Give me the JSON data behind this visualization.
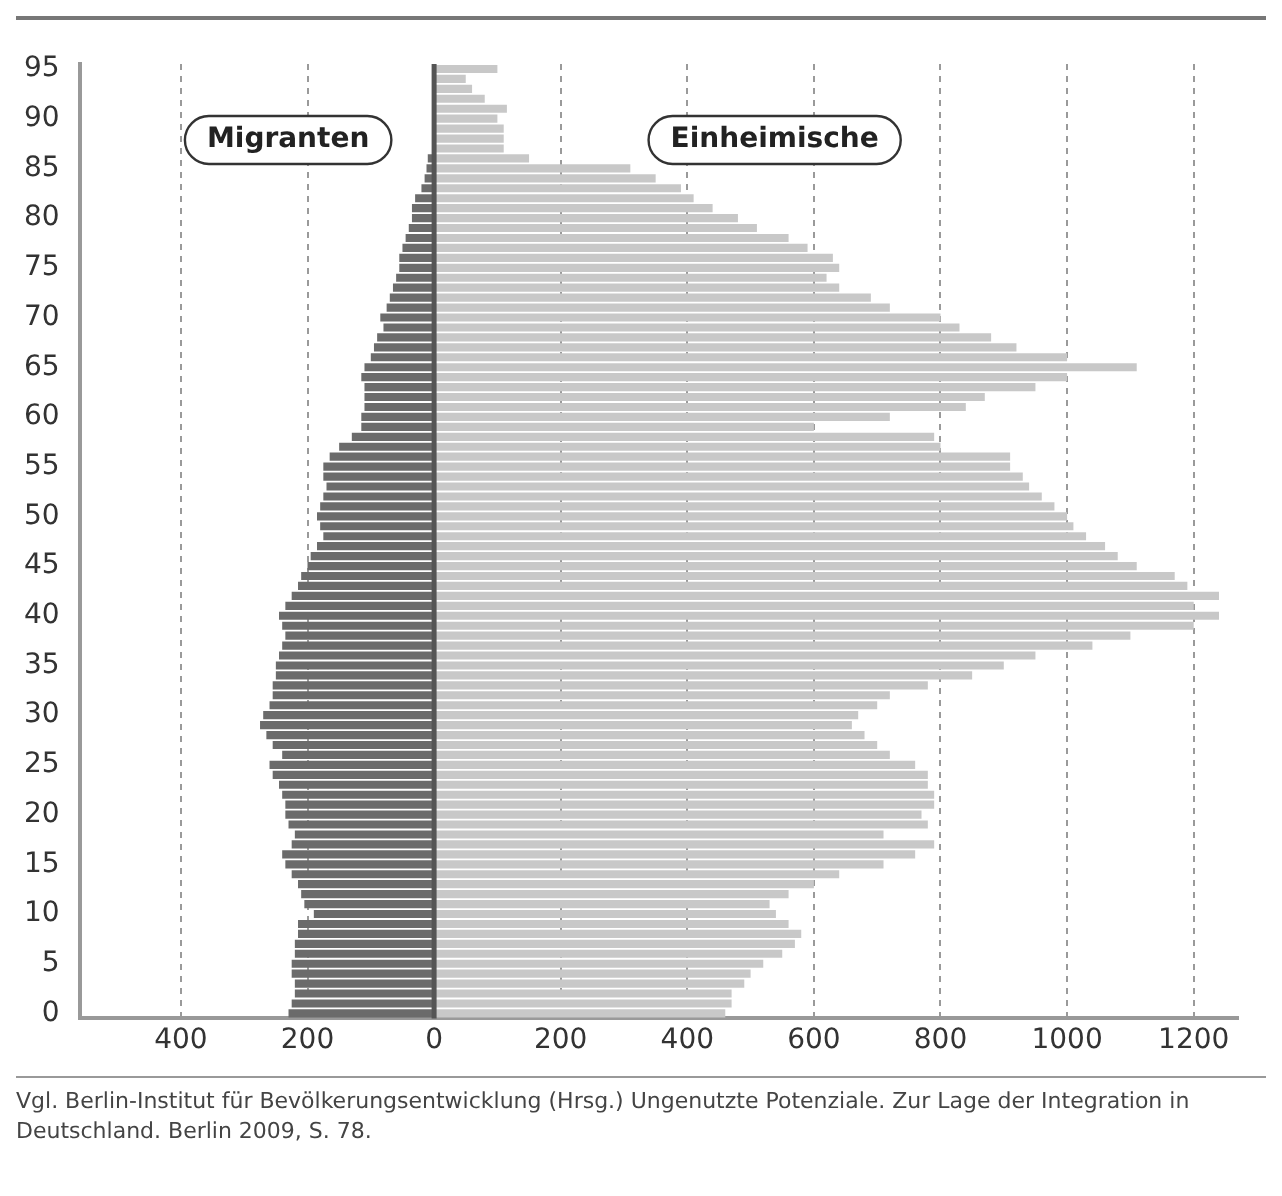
{
  "chart_data": {
    "type": "bar",
    "orientation": "horizontal",
    "stacked": true,
    "categories": [
      "95",
      null,
      null,
      null,
      null,
      "90",
      null,
      null,
      null,
      null,
      "85",
      null,
      null,
      null,
      null,
      "80",
      null,
      null,
      null,
      null,
      "75",
      null,
      null,
      null,
      null,
      "70",
      null,
      null,
      null,
      null,
      "65",
      null,
      null,
      null,
      null,
      "60",
      null,
      null,
      null,
      null,
      "55",
      null,
      null,
      null,
      null,
      "50",
      null,
      null,
      null,
      null,
      "45",
      null,
      null,
      null,
      null,
      "40",
      null,
      null,
      null,
      null,
      "35",
      null,
      null,
      null,
      null,
      "30",
      null,
      null,
      null,
      null,
      "25",
      null,
      null,
      null,
      null,
      "20",
      null,
      null,
      null,
      null,
      "15",
      null,
      null,
      null,
      null,
      "10",
      null,
      null,
      null,
      null,
      "5",
      null,
      null,
      null,
      null,
      "0"
    ],
    "series": [
      {
        "name": "Migranten",
        "color": "#6b6b6b",
        "values": [
          null,
          null,
          null,
          null,
          null,
          null,
          null,
          null,
          null,
          -10,
          -12,
          -15,
          -20,
          -30,
          -35,
          -35,
          -40,
          -45,
          -50,
          -55,
          -55,
          -60,
          -65,
          -70,
          -75,
          -85,
          -80,
          -90,
          -95,
          -100,
          -110,
          -115,
          -110,
          -110,
          -110,
          -115,
          -115,
          -130,
          -150,
          -165,
          -175,
          -175,
          -170,
          -175,
          -180,
          -185,
          -180,
          -175,
          -185,
          -195,
          -200,
          -210,
          -215,
          -225,
          -235,
          -245,
          -240,
          -235,
          -240,
          -245,
          -250,
          -250,
          -255,
          -255,
          -260,
          -270,
          -275,
          -265,
          -255,
          -240,
          -260,
          -255,
          -245,
          -240,
          -235,
          -235,
          -230,
          -220,
          -225,
          -240,
          -235,
          -225,
          -215,
          -210,
          -205,
          -190,
          -215,
          -215,
          -220,
          -220,
          -225,
          -225,
          -220,
          -220,
          -225,
          -230
        ]
      },
      {
        "name": "Einheimische",
        "color": "#c8c8c8",
        "values": [
          100,
          50,
          60,
          80,
          115,
          100,
          110,
          110,
          110,
          150,
          310,
          350,
          390,
          410,
          440,
          480,
          510,
          560,
          590,
          630,
          640,
          620,
          640,
          690,
          720,
          800,
          830,
          880,
          920,
          1000,
          1110,
          1000,
          950,
          870,
          840,
          720,
          600,
          790,
          800,
          910,
          910,
          930,
          940,
          960,
          980,
          1000,
          1010,
          1030,
          1060,
          1080,
          1110,
          1170,
          1190,
          1240,
          1200,
          1240,
          1200,
          1100,
          1040,
          950,
          900,
          850,
          780,
          720,
          700,
          670,
          660,
          680,
          700,
          720,
          760,
          780,
          780,
          790,
          790,
          770,
          780,
          710,
          790,
          760,
          710,
          640,
          600,
          560,
          530,
          540,
          560,
          580,
          570,
          550,
          520,
          500,
          490,
          470,
          470,
          460
        ]
      }
    ],
    "xlim": [
      -560,
      1270
    ],
    "xticks": [
      {
        "value": -400,
        "label": "400"
      },
      {
        "value": -200,
        "label": "200"
      },
      0,
      200,
      400,
      600,
      800,
      1000,
      1200
    ],
    "grid": "x",
    "legend": false,
    "ref_lines": [
      {
        "axis": "x",
        "value": 0,
        "color": "#555555"
      }
    ],
    "annotations": [
      "Vgl. Berlin-Institut für Bevölkerungsentwicklung (Hrsg.) Ungenutzte Potenziale. Zur Lage der Integration in Deutschland. Berlin 2009, S. 78."
    ]
  }
}
